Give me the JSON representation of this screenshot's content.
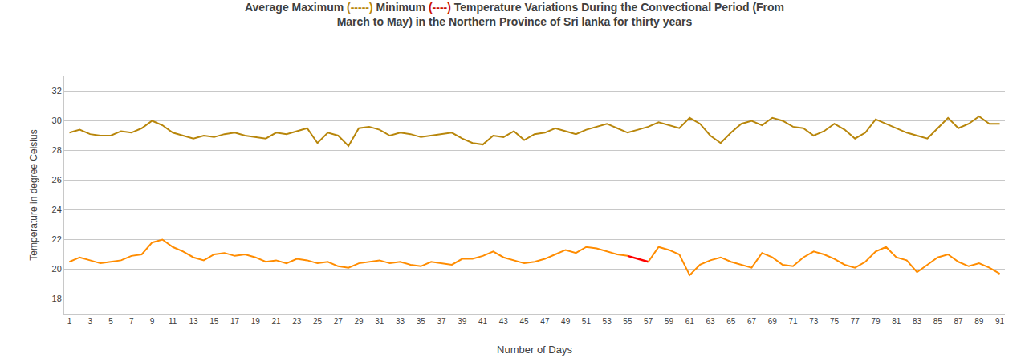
{
  "chart_data": {
    "type": "line",
    "title": [
      [
        {
          "text": "Average Maximum ",
          "color": "#404040"
        },
        {
          "text": "(-----) ",
          "color": "#B8860B"
        },
        {
          "text": "Minimum ",
          "color": "#404040"
        },
        {
          "text": "(----) ",
          "color": "#CC1100"
        },
        {
          "text": "Temperature Variations During the Convectional Period (From",
          "color": "#404040"
        }
      ],
      [
        {
          "text": "March to May) in the Northern Province of Sri lanka for thirty years",
          "color": "#404040"
        }
      ]
    ],
    "xlabel": "Number of Days",
    "ylabel": "Temperature in degree Celsius",
    "x": [
      1,
      2,
      3,
      4,
      5,
      6,
      7,
      8,
      9,
      10,
      11,
      12,
      13,
      14,
      15,
      16,
      17,
      18,
      19,
      20,
      21,
      22,
      23,
      24,
      25,
      26,
      27,
      28,
      29,
      30,
      31,
      32,
      33,
      34,
      35,
      36,
      37,
      38,
      39,
      40,
      41,
      42,
      43,
      44,
      45,
      46,
      47,
      48,
      49,
      50,
      51,
      52,
      53,
      54,
      55,
      56,
      57,
      58,
      59,
      60,
      61,
      62,
      63,
      64,
      65,
      66,
      67,
      68,
      69,
      70,
      71,
      72,
      73,
      74,
      75,
      76,
      77,
      78,
      79,
      80,
      81,
      82,
      83,
      84,
      85,
      86,
      87,
      88,
      89,
      90,
      91
    ],
    "series": [
      {
        "color": "#B8860B",
        "values": [
          29.2,
          29.4,
          29.1,
          29.0,
          29.0,
          29.3,
          29.2,
          29.5,
          30.0,
          29.7,
          29.2,
          29.0,
          28.8,
          29.0,
          28.9,
          29.1,
          29.2,
          29.0,
          28.9,
          28.8,
          29.2,
          29.1,
          29.3,
          29.5,
          28.5,
          29.2,
          29.0,
          28.3,
          29.5,
          29.6,
          29.4,
          29.0,
          29.2,
          29.1,
          28.9,
          29.0,
          29.1,
          29.2,
          28.8,
          28.5,
          28.4,
          29.0,
          28.9,
          29.3,
          28.7,
          29.1,
          29.2,
          29.5,
          29.3,
          29.1,
          29.4,
          29.6,
          29.8,
          29.5,
          29.2,
          29.4,
          29.6,
          29.9,
          29.7,
          29.5,
          30.2,
          29.8,
          29.0,
          28.5,
          29.2,
          29.8,
          30.0,
          29.7,
          30.2,
          30.0,
          29.6,
          29.5,
          29.0,
          29.3,
          29.8,
          29.4,
          28.8,
          29.2,
          30.1,
          29.8,
          29.5,
          29.2,
          29.0,
          28.8,
          29.5,
          30.2,
          29.5,
          29.8,
          30.3,
          29.8,
          29.8
        ]
      },
      {
        "color": "#FF8C00",
        "colors": [
          "#FF8C00",
          "#FF8C00",
          "#FF8C00",
          "#FF8C00",
          "#FF8C00",
          "#FF8C00",
          "#FF8C00",
          "#FF8C00",
          "#FF8C00",
          "#FF8C00",
          "#FF8C00",
          "#FF8C00",
          "#FF8C00",
          "#FF8C00",
          "#FF8C00",
          "#FF8C00",
          "#FF8C00",
          "#FF8C00",
          "#FF8C00",
          "#FF8C00",
          "#FF8C00",
          "#FF8C00",
          "#FF8C00",
          "#FF8C00",
          "#FF8C00",
          "#FF8C00",
          "#FF8C00",
          "#FF8C00",
          "#FF8C00",
          "#FF8C00",
          "#FF8C00",
          "#FF8C00",
          "#FF8C00",
          "#FF8C00",
          "#FF8C00",
          "#FF8C00",
          "#FF8C00",
          "#FF8C00",
          "#FF8C00",
          "#FF8C00",
          "#FF8C00",
          "#FF8C00",
          "#FF8C00",
          "#FF8C00",
          "#FF8C00",
          "#FF8C00",
          "#FF8C00",
          "#FF8C00",
          "#FF8C00",
          "#FF8C00",
          "#FF8C00",
          "#FF8C00",
          "#FF8C00",
          "#FF8C00",
          "#FF0000",
          "#FF0000",
          "#FF0000",
          "#FF8C00",
          "#FF8C00",
          "#FF8C00",
          "#FF8C00",
          "#FF8C00",
          "#FF8C00",
          "#FF8C00",
          "#FF8C00",
          "#FF8C00",
          "#FF8C00",
          "#FF8C00",
          "#FF8C00",
          "#FF8C00",
          "#FF8C00",
          "#FF8C00",
          "#FF8C00",
          "#FF8C00",
          "#FF8C00",
          "#FF8C00",
          "#FF8C00",
          "#FF8C00",
          "#FF8C00",
          "#FF8C00",
          "#FF8C00",
          "#FF8C00",
          "#FF8C00",
          "#FF8C00",
          "#FF8C00",
          "#FF8C00",
          "#FF8C00",
          "#FF8C00",
          "#FF8C00",
          "#FF8C00",
          "#FF8C00"
        ],
        "values": [
          20.5,
          20.8,
          20.6,
          20.4,
          20.5,
          20.6,
          20.9,
          21.0,
          21.8,
          22.0,
          21.5,
          21.2,
          20.8,
          20.6,
          21.0,
          21.1,
          20.9,
          21.0,
          20.8,
          20.5,
          20.6,
          20.4,
          20.7,
          20.6,
          20.4,
          20.5,
          20.2,
          20.1,
          20.4,
          20.5,
          20.6,
          20.4,
          20.5,
          20.3,
          20.2,
          20.5,
          20.4,
          20.3,
          20.7,
          20.7,
          20.9,
          21.2,
          20.8,
          20.6,
          20.4,
          20.5,
          20.7,
          21.0,
          21.3,
          21.1,
          21.5,
          21.4,
          21.2,
          21.0,
          20.9,
          20.7,
          20.5,
          21.5,
          21.3,
          21.0,
          19.6,
          20.3,
          20.6,
          20.8,
          20.5,
          20.3,
          20.1,
          21.1,
          20.8,
          20.3,
          20.2,
          20.8,
          21.2,
          21.0,
          20.7,
          20.3,
          20.1,
          20.5,
          21.2,
          21.5,
          20.8,
          20.6,
          19.8,
          20.3,
          20.8,
          21.0,
          20.5,
          20.2,
          20.4,
          20.1,
          19.7
        ]
      }
    ],
    "xlim": [
      0.5,
      91.5
    ],
    "xticks": [
      1,
      3,
      5,
      7,
      9,
      11,
      13,
      15,
      17,
      19,
      21,
      23,
      25,
      27,
      29,
      31,
      33,
      35,
      37,
      39,
      41,
      43,
      45,
      47,
      49,
      51,
      53,
      55,
      57,
      59,
      61,
      63,
      65,
      67,
      69,
      71,
      73,
      75,
      77,
      79,
      81,
      83,
      85,
      87,
      89,
      91
    ],
    "ylim": [
      17,
      33
    ],
    "yticks": [
      18,
      20,
      22,
      24,
      26,
      28,
      30,
      32
    ],
    "grid": "y"
  }
}
